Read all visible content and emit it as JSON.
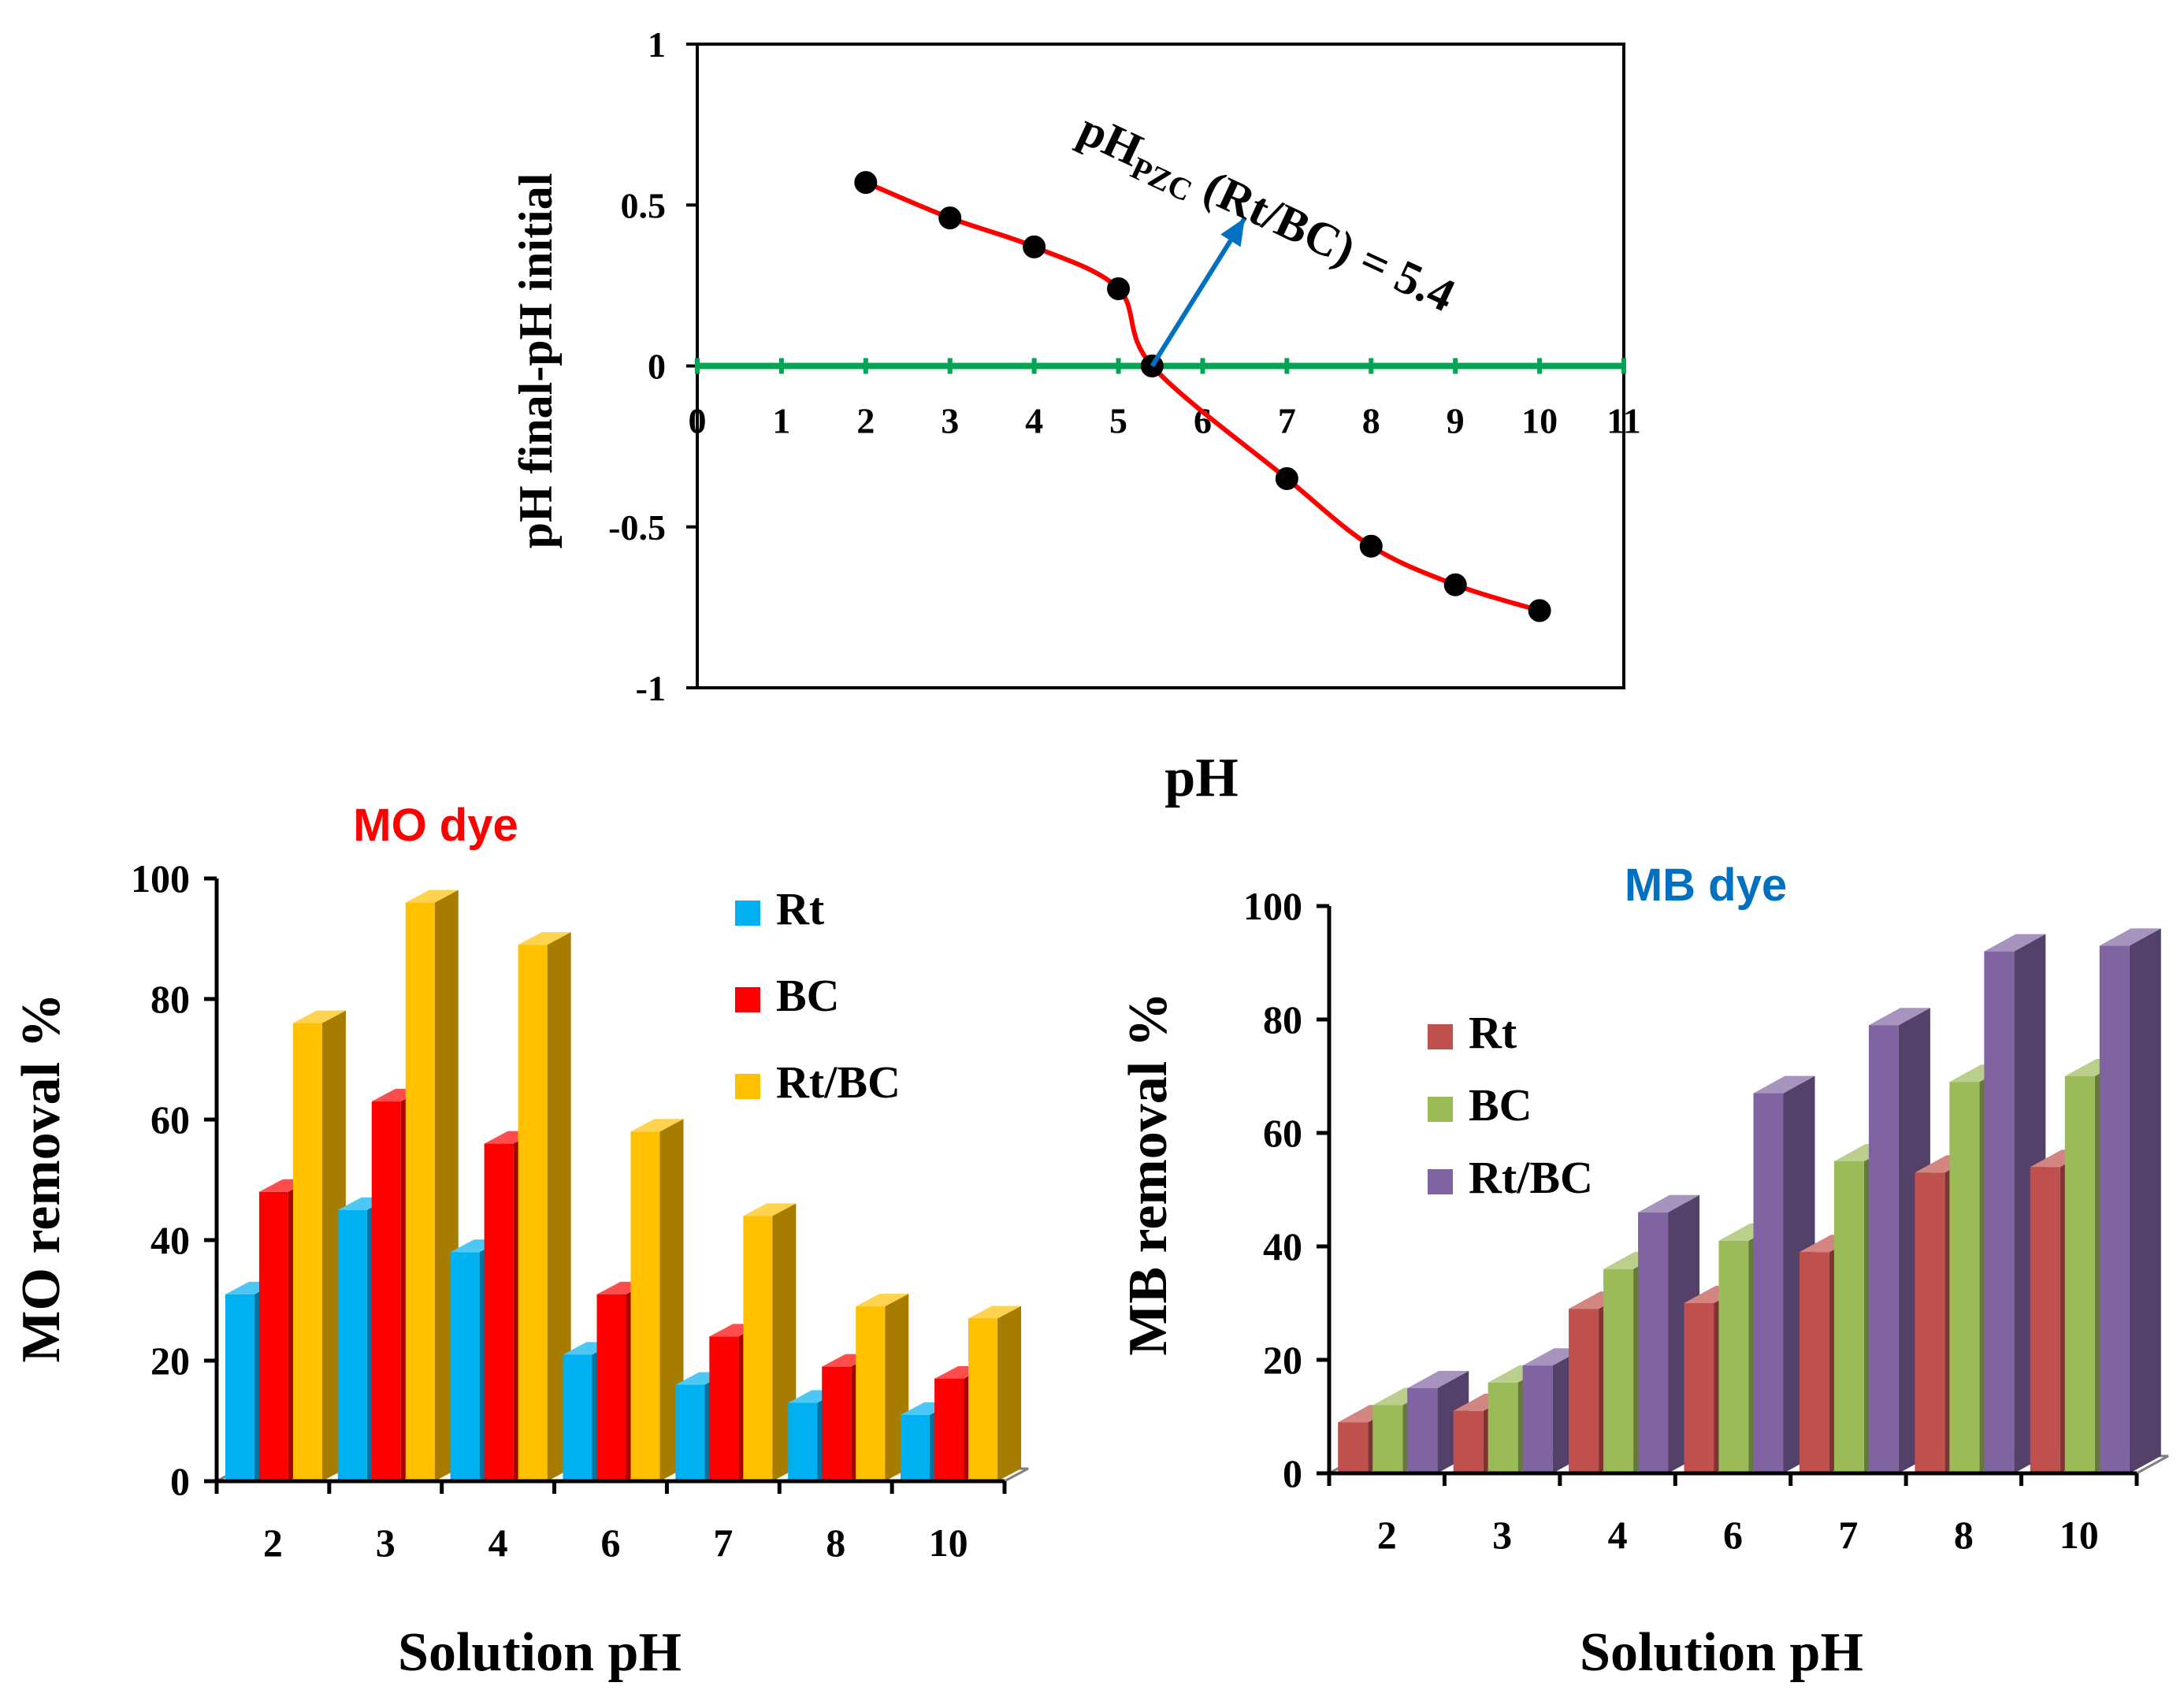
{
  "chart_data": [
    {
      "type": "line",
      "title": "",
      "xlabel": "pH",
      "ylabel": "pH final-pH initial",
      "xlim": [
        0,
        11
      ],
      "ylim": [
        -1,
        1
      ],
      "x_ticks": [
        "0",
        "1",
        "2",
        "3",
        "4",
        "5",
        "6",
        "7",
        "8",
        "9",
        "10",
        "11"
      ],
      "y_ticks": [
        "1",
        "0.5",
        "0",
        "-0.5",
        "-1"
      ],
      "series": [
        {
          "name": "pH final-pH initial",
          "color": "#ff0000",
          "marker_color": "#000000",
          "x": [
            2,
            3,
            4,
            5,
            5.4,
            7,
            8,
            9,
            10
          ],
          "values": [
            0.57,
            0.46,
            0.37,
            0.24,
            0.0,
            -0.35,
            -0.56,
            -0.68,
            -0.76
          ]
        }
      ],
      "zero_line_color": "#00a651",
      "annotation": {
        "main": "pH",
        "sub": "PZC",
        "rest": " (Rt/BC) = 5.4",
        "arrow_color": "#0070c0"
      }
    },
    {
      "type": "bar",
      "title": "MO dye",
      "title_color": "#ff0000",
      "xlabel": "Solution pH",
      "ylabel": "MO removal %",
      "ylim": [
        0,
        100
      ],
      "y_ticks": [
        "0",
        "20",
        "40",
        "60",
        "80",
        "100"
      ],
      "categories": [
        "2",
        "3",
        "4",
        "6",
        "7",
        "8",
        "10"
      ],
      "series": [
        {
          "name": "Rt",
          "color": "#00b0f0",
          "values": [
            31,
            45,
            38,
            21,
            16,
            13,
            11
          ]
        },
        {
          "name": "BC",
          "color": "#ff0000",
          "values": [
            48,
            63,
            56,
            31,
            24,
            19,
            17
          ]
        },
        {
          "name": "Rt/BC",
          "color": "#ffc000",
          "values": [
            76,
            96,
            89,
            58,
            44,
            29,
            27
          ]
        }
      ]
    },
    {
      "type": "bar",
      "title": "MB dye",
      "title_color": "#0070c0",
      "xlabel": "Solution pH",
      "ylabel": "MB removal %",
      "ylim": [
        0,
        100
      ],
      "y_ticks": [
        "0",
        "20",
        "40",
        "60",
        "80",
        "100"
      ],
      "categories": [
        "2",
        "3",
        "4",
        "6",
        "7",
        "8",
        "10"
      ],
      "series": [
        {
          "name": "Rt",
          "color": "#c0504d",
          "values": [
            9,
            11,
            29,
            30,
            39,
            53,
            54
          ]
        },
        {
          "name": "BC",
          "color": "#9bbb59",
          "values": [
            12,
            16,
            36,
            41,
            55,
            69,
            70
          ]
        },
        {
          "name": "Rt/BC",
          "color": "#8064a2",
          "values": [
            15,
            19,
            46,
            67,
            79,
            92,
            93
          ]
        }
      ]
    }
  ]
}
